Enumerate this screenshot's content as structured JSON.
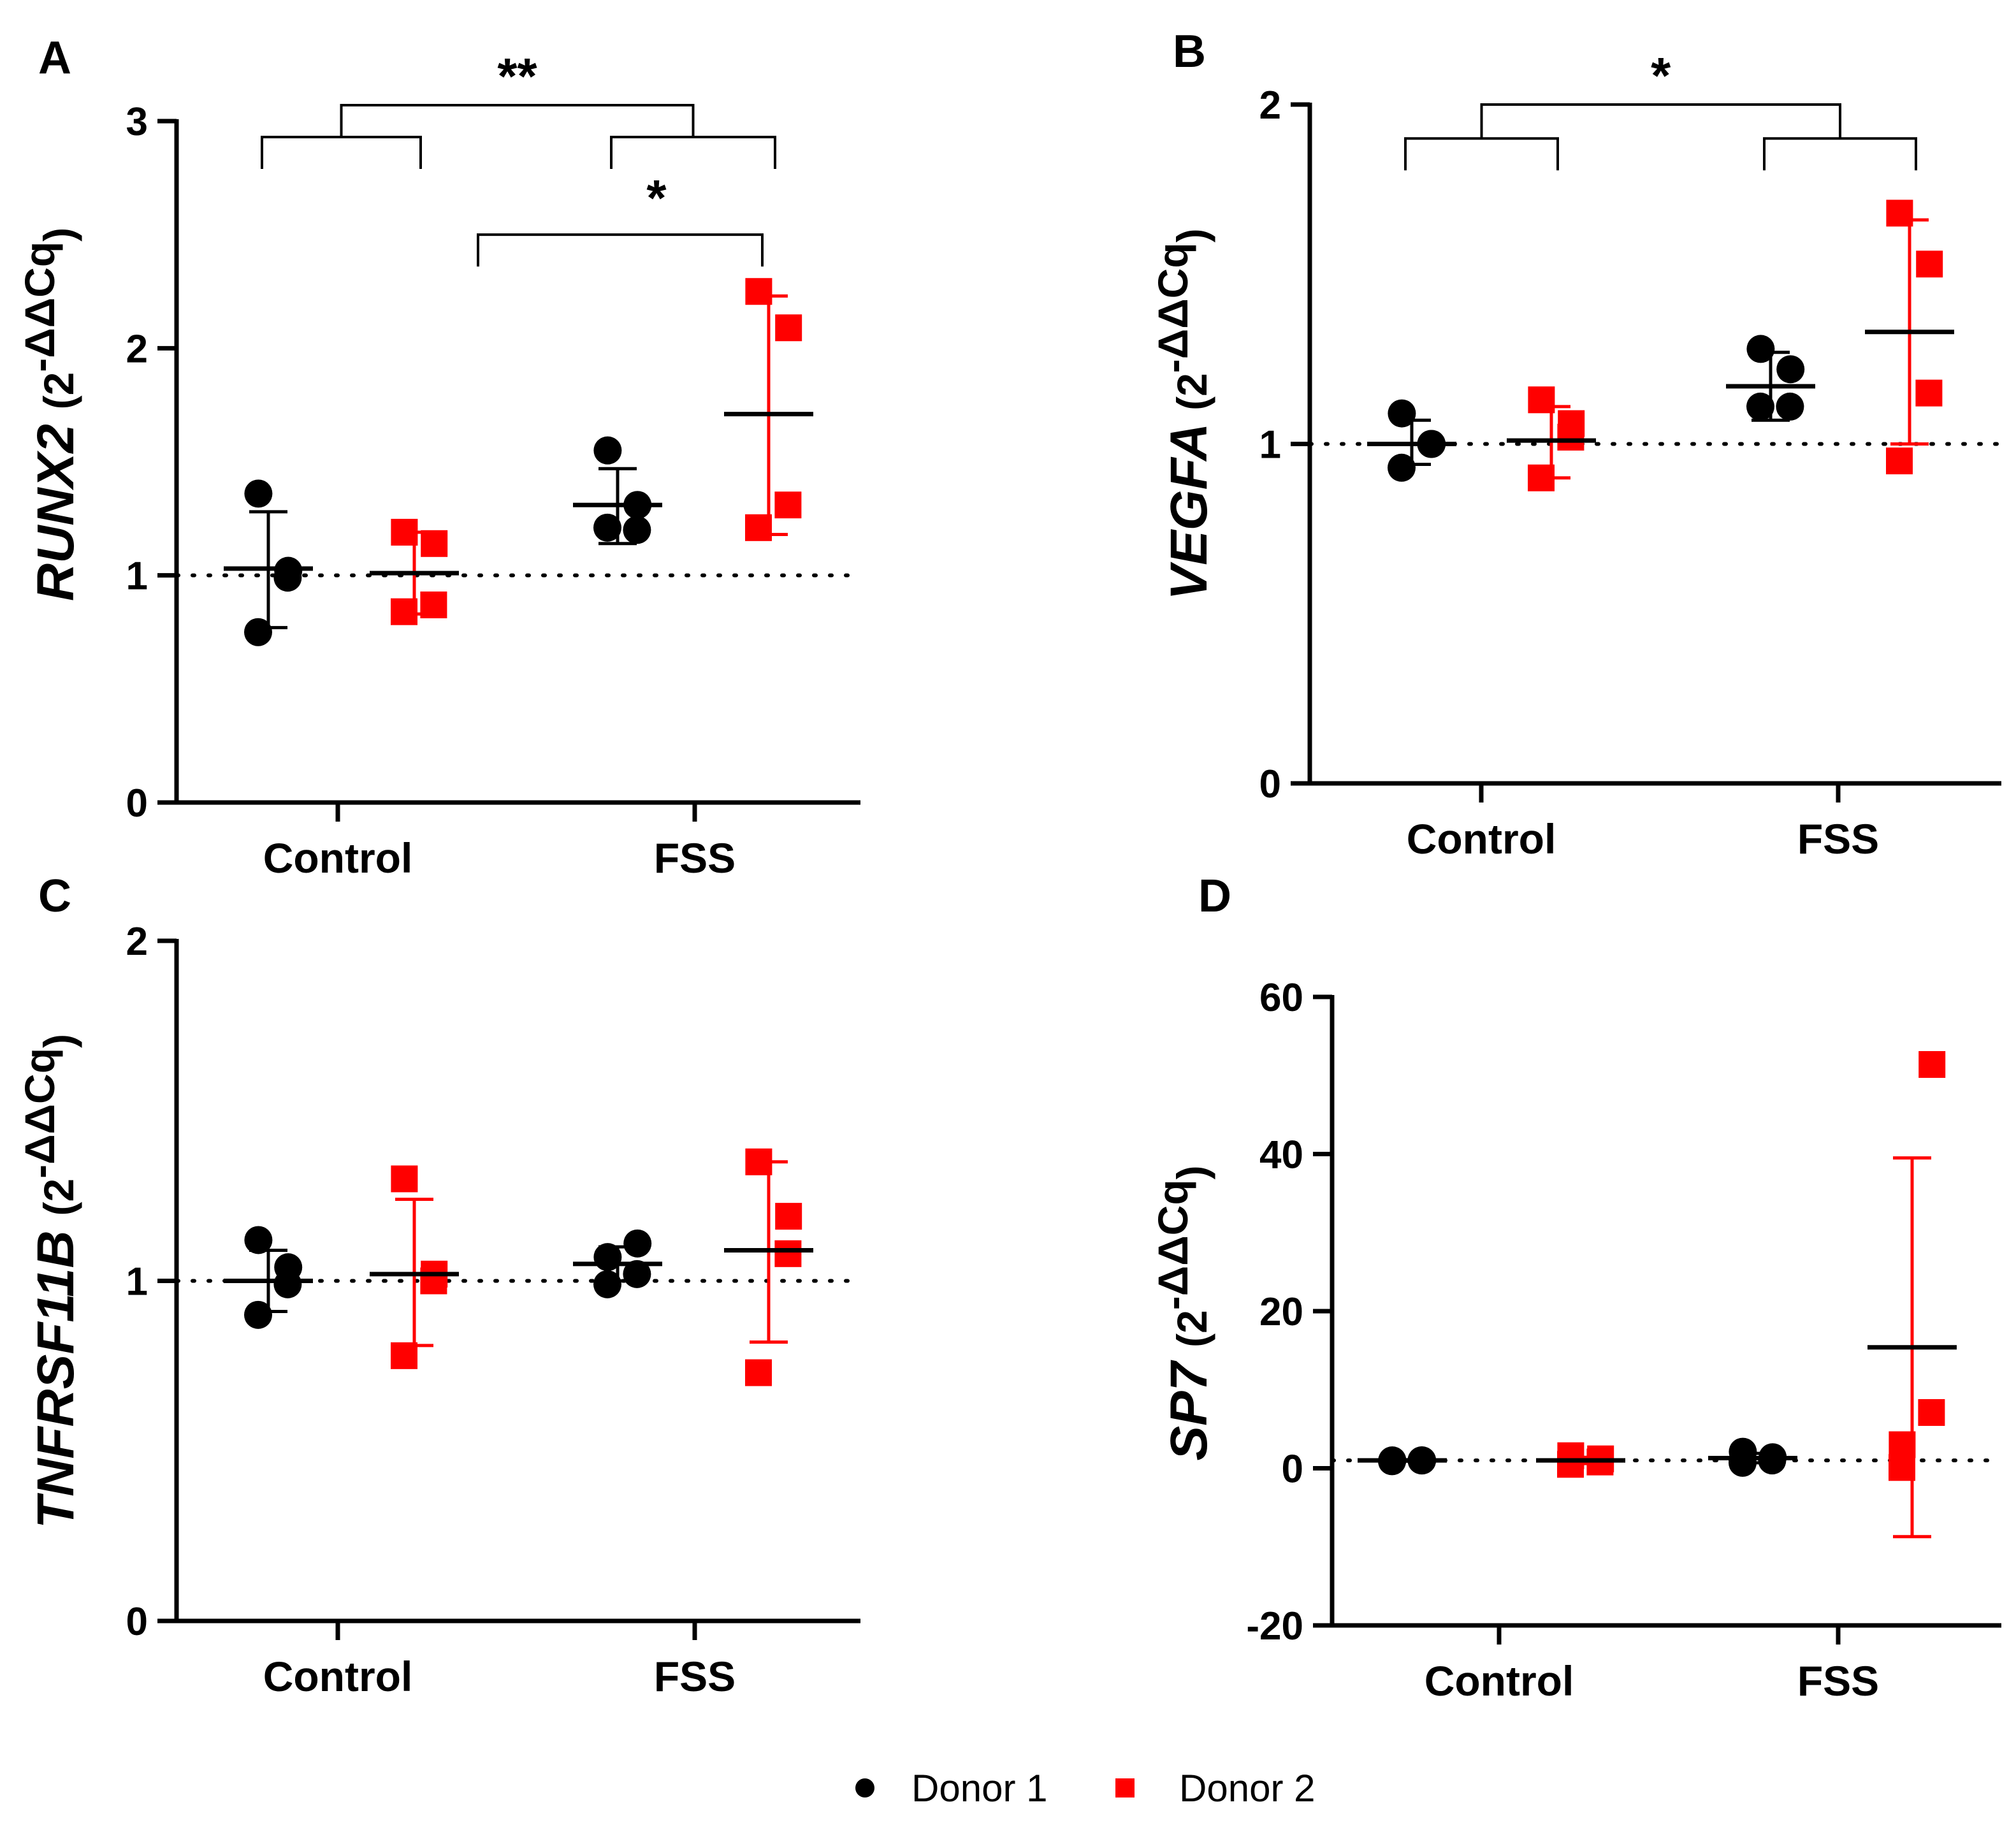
{
  "legend": {
    "items": [
      {
        "label": "Donor 1",
        "color": "#000000",
        "marker": "circle"
      },
      {
        "label": "Donor 2",
        "color": "#ff0000",
        "marker": "square"
      }
    ]
  },
  "chart_data": [
    {
      "id": "A",
      "type": "scatter",
      "panel_label": "A",
      "gene": "RUNX2",
      "unit": "(2",
      "unit_sup": "-ΔΔCq",
      "unit_close": ")",
      "categories": [
        "Control",
        "FSS"
      ],
      "ylim": [
        0,
        3
      ],
      "yticks": [
        {
          "value": 0,
          "label": "0"
        },
        {
          "value": 1,
          "label": "1"
        },
        {
          "value": 2,
          "label": "2"
        },
        {
          "value": 3,
          "label": "3"
        }
      ],
      "reference_line": 1,
      "series": [
        {
          "name": "Donor 1",
          "color": "#000000",
          "marker": "circle",
          "groups": [
            {
              "category": "Control",
              "points": [
                1.36,
                1.02,
                0.99,
                0.75
              ],
              "mean": 1.03,
              "sd_low": 0.77,
              "sd_high": 1.28
            },
            {
              "category": "FSS",
              "points": [
                1.55,
                1.31,
                1.2,
                1.21
              ],
              "mean": 1.31,
              "sd_low": 1.14,
              "sd_high": 1.47
            }
          ]
        },
        {
          "name": "Donor 2",
          "color": "#ff0000",
          "marker": "square",
          "groups": [
            {
              "category": "Control",
              "points": [
                1.19,
                1.14,
                0.87,
                0.84
              ],
              "mean": 1.01,
              "sd_low": 0.83,
              "sd_high": 1.19
            },
            {
              "category": "FSS",
              "points": [
                2.25,
                2.09,
                1.31,
                1.21
              ],
              "mean": 1.71,
              "sd_low": 1.18,
              "sd_high": 2.23
            }
          ]
        }
      ],
      "significance": [
        {
          "label": "**",
          "left_bracket": [
            0,
            1
          ],
          "right_bracket": [
            2,
            3
          ],
          "y_low": 2.93,
          "y_high": 3.07
        },
        {
          "label": "*",
          "from_group": 1,
          "to_group": 3,
          "y": 2.5
        }
      ]
    },
    {
      "id": "B",
      "type": "scatter",
      "panel_label": "B",
      "gene": "VEGFA",
      "unit": "(2",
      "unit_sup": "-ΔΔCq",
      "unit_close": ")",
      "categories": [
        "Control",
        "FSS"
      ],
      "ylim": [
        0,
        2
      ],
      "yticks": [
        {
          "value": 0,
          "label": "0"
        },
        {
          "value": 1,
          "label": "1"
        },
        {
          "value": 2,
          "label": "2"
        }
      ],
      "reference_line": 1,
      "series": [
        {
          "name": "Donor 1",
          "color": "#000000",
          "marker": "circle",
          "groups": [
            {
              "category": "Control",
              "points": [
                1.09,
                1.0,
                1.0,
                0.93
              ],
              "mean": 1.0,
              "sd_low": 0.94,
              "sd_high": 1.07
            },
            {
              "category": "FSS",
              "points": [
                1.28,
                1.22,
                1.11,
                1.11
              ],
              "mean": 1.17,
              "sd_low": 1.07,
              "sd_high": 1.27
            }
          ]
        },
        {
          "name": "Donor 2",
          "color": "#ff0000",
          "marker": "square",
          "groups": [
            {
              "category": "Control",
              "points": [
                1.13,
                1.06,
                1.02,
                0.9
              ],
              "mean": 1.01,
              "sd_low": 0.9,
              "sd_high": 1.11
            },
            {
              "category": "FSS",
              "points": [
                1.68,
                1.53,
                1.15,
                0.95
              ],
              "mean": 1.33,
              "sd_low": 1.0,
              "sd_high": 1.66
            }
          ]
        }
      ],
      "significance": [
        {
          "label": "*",
          "left_bracket": [
            0,
            1
          ],
          "right_bracket": [
            2,
            3
          ],
          "y_low": 1.9,
          "y_high": 2.0
        }
      ]
    },
    {
      "id": "C",
      "type": "scatter",
      "panel_label": "C",
      "gene": "TNFRSF11B",
      "unit": "(2",
      "unit_sup": "-ΔΔCq",
      "unit_close": ")",
      "categories": [
        "Control",
        "FSS"
      ],
      "ylim": [
        0,
        2
      ],
      "yticks": [
        {
          "value": 0,
          "label": "0"
        },
        {
          "value": 1,
          "label": "1"
        },
        {
          "value": 2,
          "label": "2"
        }
      ],
      "reference_line": 1,
      "series": [
        {
          "name": "Donor 1",
          "color": "#000000",
          "marker": "circle",
          "groups": [
            {
              "category": "Control",
              "points": [
                1.12,
                1.04,
                0.99,
                0.9
              ],
              "mean": 1.0,
              "sd_low": 0.91,
              "sd_high": 1.09
            },
            {
              "category": "FSS",
              "points": [
                1.07,
                1.11,
                1.02,
                0.99
              ],
              "mean": 1.05,
              "sd_low": 1.0,
              "sd_high": 1.1
            }
          ]
        },
        {
          "name": "Donor 2",
          "color": "#ff0000",
          "marker": "square",
          "groups": [
            {
              "category": "Control",
              "points": [
                1.3,
                1.02,
                1.0,
                0.78
              ],
              "mean": 1.02,
              "sd_low": 0.81,
              "sd_high": 1.24
            },
            {
              "category": "FSS",
              "points": [
                1.35,
                1.19,
                1.08,
                0.73
              ],
              "mean": 1.09,
              "sd_low": 0.82,
              "sd_high": 1.35
            }
          ]
        }
      ],
      "significance": []
    },
    {
      "id": "D",
      "type": "scatter",
      "panel_label": "D",
      "gene": "SP7",
      "unit": "(2",
      "unit_sup": "-ΔΔCq",
      "unit_close": ")",
      "categories": [
        "Control",
        "FSS"
      ],
      "ylim": [
        -20,
        60
      ],
      "yticks": [
        {
          "value": -20,
          "label": "-20"
        },
        {
          "value": 0,
          "label": "0"
        },
        {
          "value": 20,
          "label": "20"
        },
        {
          "value": 40,
          "label": "40"
        },
        {
          "value": 60,
          "label": "60"
        }
      ],
      "reference_line": 1,
      "series": [
        {
          "name": "Donor 1",
          "color": "#000000",
          "marker": "circle",
          "groups": [
            {
              "category": "Control",
              "points": [
                1.0,
                1.0,
                1.0,
                0.9
              ],
              "mean": 1.0,
              "sd_low": 0.9,
              "sd_high": 1.1
            },
            {
              "category": "FSS",
              "points": [
                2.1,
                1.4,
                1.0,
                0.7
              ],
              "mean": 1.3,
              "sd_low": 0.7,
              "sd_high": 1.9
            }
          ]
        },
        {
          "name": "Donor 2",
          "color": "#ff0000",
          "marker": "square",
          "groups": [
            {
              "category": "Control",
              "points": [
                1.6,
                1.2,
                0.8,
                0.5
              ],
              "mean": 1.0,
              "sd_low": 0.6,
              "sd_high": 1.4
            },
            {
              "category": "FSS",
              "points": [
                3.0,
                51.4,
                7.1,
                0.1
              ],
              "mean": 15.4,
              "sd_low": -8.7,
              "sd_high": 39.5
            }
          ]
        }
      ],
      "significance": []
    }
  ]
}
